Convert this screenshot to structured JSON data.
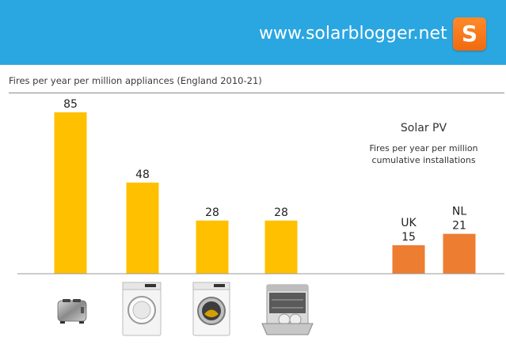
{
  "header": {
    "url": "www.solarblogger.net",
    "logo_letter": "S",
    "bg_color": "#2aa6e1"
  },
  "chart_data": {
    "type": "bar",
    "title": "Fires per year per million appliances (England 2010-21)",
    "categories": [
      "Toaster",
      "Tumble dryer",
      "Washing machine",
      "Dishwasher",
      "UK",
      "NL"
    ],
    "values": [
      85,
      48,
      28,
      28,
      15,
      21
    ],
    "series_groups": [
      {
        "name": "Appliances",
        "indices": [
          0,
          1,
          2,
          3
        ],
        "color": "#ffc000"
      },
      {
        "name": "Solar PV",
        "indices": [
          4,
          5
        ],
        "color": "#ed7d31"
      }
    ],
    "ylim": [
      0,
      85
    ],
    "grid": false,
    "solar_annotation": {
      "title": "Solar PV",
      "subtitle_line1": "Fires per year per million",
      "subtitle_line2": "cumulative installations"
    },
    "category_labels_shown": [
      "",
      "",
      "",
      "",
      "UK",
      "NL"
    ],
    "icons": [
      "toaster-icon",
      "tumble-dryer-icon",
      "washing-machine-icon",
      "dishwasher-icon"
    ]
  }
}
